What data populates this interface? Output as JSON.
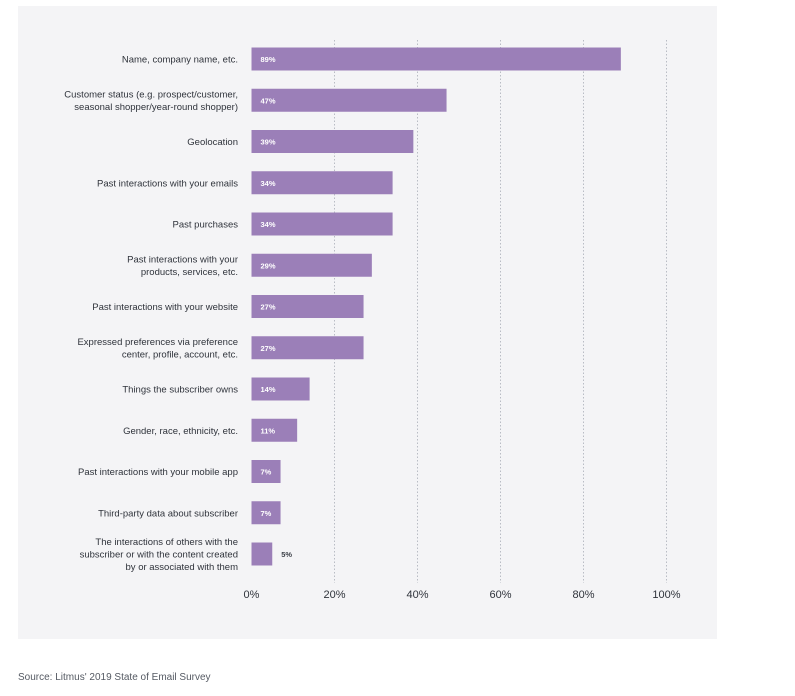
{
  "chart_data": {
    "type": "bar",
    "orientation": "horizontal",
    "categories": [
      [
        "Name, company name, etc."
      ],
      [
        "Customer status (e.g. prospect/customer,",
        "seasonal shopper/year-round shopper)"
      ],
      [
        "Geolocation"
      ],
      [
        "Past interactions with your emails"
      ],
      [
        "Past purchases"
      ],
      [
        "Past interactions with your",
        "products, services, etc."
      ],
      [
        "Past interactions with your website"
      ],
      [
        "Expressed preferences via preference",
        "center, profile, account, etc."
      ],
      [
        "Things the subscriber owns"
      ],
      [
        "Gender, race, ethnicity, etc."
      ],
      [
        "Past interactions with your mobile app"
      ],
      [
        "Third-party data about subscriber"
      ],
      [
        "The interactions of others with the",
        "subscriber or with the content created",
        "by or associated with them"
      ]
    ],
    "values": [
      89,
      47,
      39,
      34,
      34,
      29,
      27,
      27,
      14,
      11,
      7,
      7,
      5
    ],
    "value_labels": [
      "89%",
      "47%",
      "39%",
      "34%",
      "34%",
      "29%",
      "27%",
      "27%",
      "14%",
      "11%",
      "7%",
      "7%",
      "5%"
    ],
    "xlim": [
      0,
      100
    ],
    "xticks": [
      0,
      20,
      40,
      60,
      80,
      100
    ],
    "xtick_labels": [
      "0%",
      "20%",
      "40%",
      "60%",
      "80%",
      "100%"
    ],
    "grid": "vertical dotted",
    "bar_color": "#9b7fb8",
    "label_color": "#ffffff",
    "outside_label_color": "#3b3f47",
    "text_color": "#2f333b",
    "title": "",
    "xlabel": "",
    "ylabel": ""
  },
  "footer": {
    "source": "Source: Litmus' 2019 State of Email Survey"
  }
}
